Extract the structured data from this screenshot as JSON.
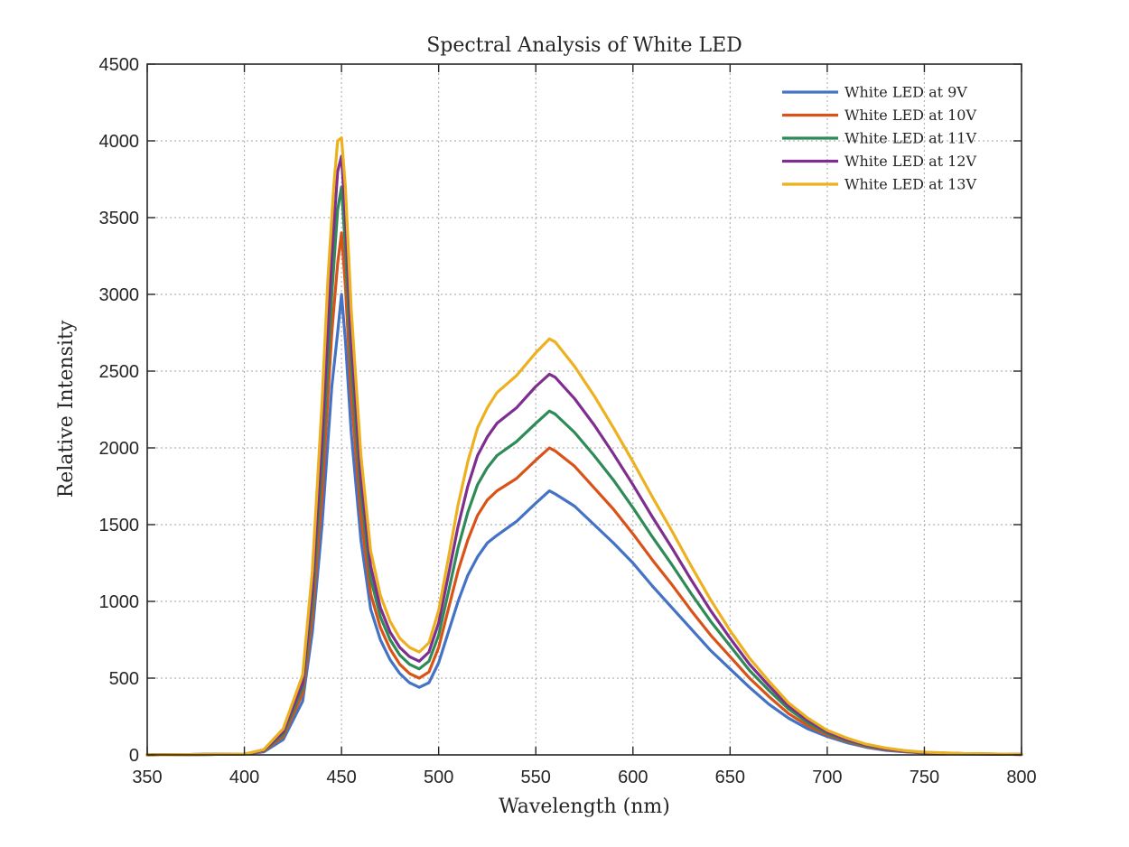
{
  "chart_data": {
    "type": "line",
    "title": "Spectral Analysis of White LED",
    "xlabel": "Wavelength (nm)",
    "ylabel": "Relative Intensity",
    "xlim": [
      350,
      800
    ],
    "ylim": [
      0,
      4500
    ],
    "xticks": [
      350,
      400,
      450,
      500,
      550,
      600,
      650,
      700,
      750,
      800
    ],
    "yticks": [
      0,
      500,
      1000,
      1500,
      2000,
      2500,
      3000,
      3500,
      4000,
      4500
    ],
    "grid": true,
    "legend_position": "top-right",
    "series": [
      {
        "name": "White LED at 9V",
        "color": "#4472C4",
        "x": [
          350,
          400,
          410,
          420,
          430,
          435,
          440,
          445,
          448,
          450,
          452,
          455,
          460,
          465,
          470,
          475,
          480,
          485,
          490,
          495,
          500,
          505,
          510,
          515,
          520,
          525,
          530,
          540,
          550,
          557,
          560,
          570,
          580,
          590,
          600,
          610,
          620,
          630,
          640,
          650,
          660,
          670,
          680,
          690,
          700,
          710,
          720,
          730,
          740,
          750,
          770,
          800
        ],
        "y": [
          0,
          5,
          20,
          100,
          350,
          800,
          1500,
          2400,
          2750,
          3000,
          2700,
          2100,
          1400,
          950,
          750,
          620,
          530,
          470,
          440,
          470,
          600,
          800,
          1000,
          1170,
          1290,
          1380,
          1430,
          1520,
          1640,
          1720,
          1700,
          1620,
          1500,
          1380,
          1250,
          1100,
          960,
          820,
          680,
          560,
          440,
          330,
          240,
          170,
          120,
          80,
          50,
          30,
          20,
          12,
          6,
          3
        ]
      },
      {
        "name": "White LED at 10V",
        "color": "#D95319",
        "x": [
          350,
          400,
          410,
          420,
          430,
          435,
          440,
          445,
          448,
          450,
          452,
          455,
          460,
          465,
          470,
          475,
          480,
          485,
          490,
          495,
          500,
          505,
          510,
          515,
          520,
          525,
          530,
          540,
          550,
          557,
          560,
          570,
          580,
          590,
          600,
          610,
          620,
          630,
          640,
          650,
          660,
          670,
          680,
          690,
          700,
          710,
          720,
          730,
          740,
          750,
          770,
          800
        ],
        "y": [
          0,
          5,
          25,
          120,
          400,
          900,
          1700,
          2750,
          3200,
          3400,
          3050,
          2350,
          1550,
          1050,
          830,
          690,
          590,
          530,
          500,
          540,
          700,
          950,
          1200,
          1400,
          1560,
          1660,
          1720,
          1800,
          1920,
          2000,
          1980,
          1880,
          1740,
          1600,
          1440,
          1270,
          1110,
          940,
          780,
          640,
          500,
          380,
          270,
          190,
          130,
          90,
          55,
          35,
          22,
          14,
          7,
          3
        ]
      },
      {
        "name": "White LED at 11V",
        "color": "#2E8B57",
        "x": [
          350,
          400,
          410,
          420,
          430,
          435,
          440,
          445,
          448,
          450,
          452,
          455,
          460,
          465,
          470,
          475,
          480,
          485,
          490,
          495,
          500,
          505,
          510,
          515,
          520,
          525,
          530,
          540,
          550,
          557,
          560,
          570,
          580,
          590,
          600,
          610,
          620,
          630,
          640,
          650,
          660,
          670,
          680,
          690,
          700,
          710,
          720,
          730,
          740,
          750,
          770,
          800
        ],
        "y": [
          0,
          5,
          28,
          135,
          440,
          1000,
          1900,
          3000,
          3550,
          3700,
          3300,
          2550,
          1700,
          1150,
          900,
          750,
          650,
          590,
          560,
          610,
          780,
          1060,
          1350,
          1580,
          1760,
          1870,
          1950,
          2040,
          2160,
          2240,
          2220,
          2100,
          1950,
          1790,
          1610,
          1420,
          1240,
          1050,
          870,
          710,
          550,
          420,
          300,
          210,
          140,
          95,
          60,
          38,
          24,
          15,
          8,
          3
        ]
      },
      {
        "name": "White LED at 12V",
        "color": "#7E2F8E",
        "x": [
          350,
          400,
          410,
          420,
          430,
          435,
          440,
          445,
          448,
          450,
          452,
          455,
          460,
          465,
          470,
          475,
          480,
          485,
          490,
          495,
          500,
          505,
          510,
          515,
          520,
          525,
          530,
          540,
          550,
          557,
          560,
          570,
          580,
          590,
          600,
          610,
          620,
          630,
          640,
          650,
          660,
          670,
          680,
          690,
          700,
          710,
          720,
          730,
          740,
          750,
          770,
          800
        ],
        "y": [
          0,
          5,
          30,
          150,
          470,
          1080,
          2050,
          3250,
          3800,
          3900,
          3500,
          2700,
          1800,
          1230,
          960,
          800,
          700,
          640,
          610,
          670,
          860,
          1170,
          1490,
          1750,
          1950,
          2070,
          2160,
          2260,
          2400,
          2480,
          2460,
          2320,
          2150,
          1960,
          1760,
          1550,
          1350,
          1140,
          940,
          760,
          590,
          450,
          320,
          225,
          150,
          100,
          65,
          40,
          25,
          16,
          8,
          3
        ]
      },
      {
        "name": "White LED at 13V",
        "color": "#EDB120",
        "x": [
          350,
          400,
          410,
          420,
          430,
          435,
          440,
          443,
          446,
          448,
          450,
          452,
          455,
          460,
          465,
          470,
          475,
          480,
          485,
          490,
          495,
          500,
          505,
          510,
          515,
          520,
          525,
          530,
          540,
          550,
          557,
          560,
          570,
          580,
          590,
          600,
          610,
          620,
          630,
          640,
          650,
          660,
          670,
          680,
          690,
          700,
          710,
          720,
          730,
          740,
          750,
          770,
          800
        ],
        "y": [
          0,
          5,
          35,
          170,
          520,
          1200,
          2300,
          3100,
          3700,
          4000,
          4020,
          3700,
          2900,
          1950,
          1330,
          1040,
          870,
          760,
          700,
          670,
          730,
          940,
          1280,
          1630,
          1910,
          2130,
          2260,
          2360,
          2470,
          2620,
          2710,
          2690,
          2530,
          2340,
          2130,
          1910,
          1680,
          1460,
          1230,
          1010,
          810,
          630,
          480,
          340,
          240,
          160,
          110,
          70,
          45,
          28,
          18,
          9,
          4
        ]
      }
    ]
  }
}
